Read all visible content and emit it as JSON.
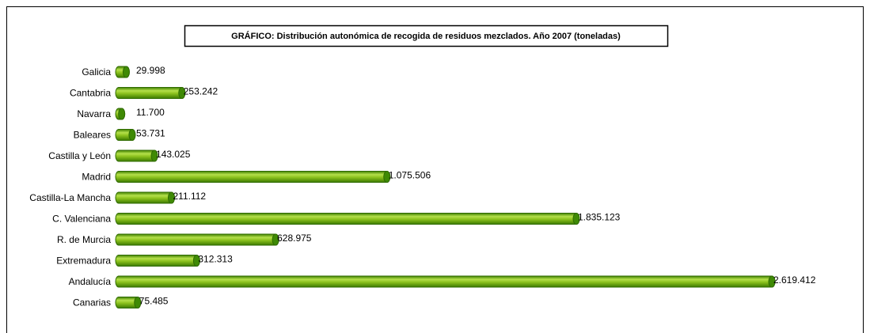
{
  "chart_data": {
    "type": "bar",
    "orientation": "horizontal",
    "title": "GRÁFICO: Distribución autonómica de recogida de residuos mezclados. Año 2007 (toneladas)",
    "categories": [
      "Galicia",
      "Cantabria",
      "Navarra",
      "Baleares",
      "Castilla y León",
      "Madrid",
      "Castilla-La Mancha",
      "C. Valenciana",
      "R. de Murcia",
      "Extremadura",
      "Andalucía",
      "Canarias"
    ],
    "values": [
      29998,
      253242,
      11700,
      53731,
      143025,
      1075506,
      211112,
      1835123,
      628975,
      312313,
      2619412,
      75485
    ],
    "value_labels": [
      "29.998",
      "253.242",
      "11.700",
      "53.731",
      "143.025",
      "1.075.506",
      "211.112",
      "1.835.123",
      "628.975",
      "312.313",
      "2.619.412",
      "75.485"
    ],
    "color": "#8cc21e"
  }
}
